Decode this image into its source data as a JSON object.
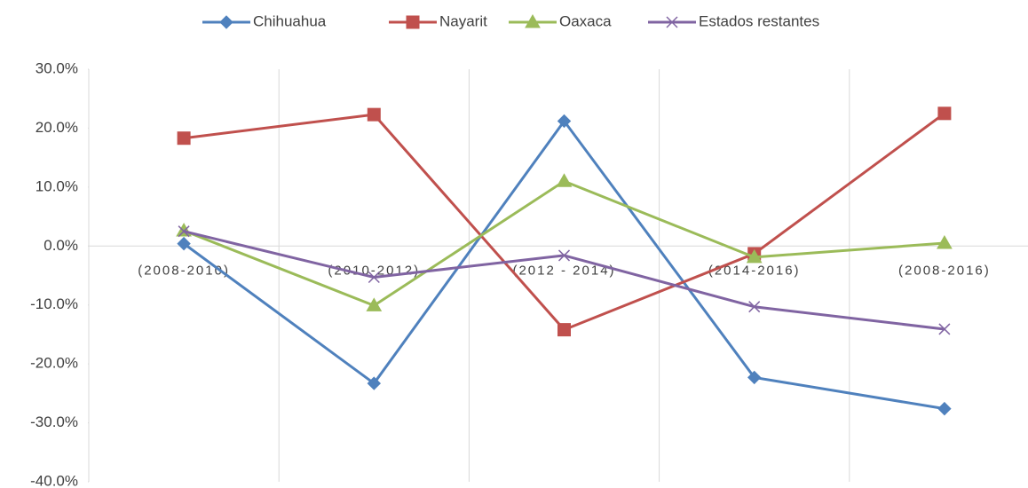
{
  "chart_data": {
    "type": "line",
    "categories": [
      "(2008-2010)",
      "(2010-2012)",
      "(2012 - 2014)",
      "(2014-2016)",
      "(2008-2016)"
    ],
    "series": [
      {
        "name": "Chihuahua",
        "color": "#4f81bd",
        "marker": "diamond",
        "values": [
          0.4,
          -23.3,
          21.2,
          -22.3,
          -27.6
        ]
      },
      {
        "name": "Nayarit",
        "color": "#c0504d",
        "marker": "square",
        "values": [
          18.3,
          22.3,
          -14.2,
          -1.3,
          22.5
        ]
      },
      {
        "name": "Oaxaca",
        "color": "#9bbb59",
        "marker": "triangle",
        "values": [
          2.6,
          -10.1,
          11.0,
          -1.9,
          0.5
        ]
      },
      {
        "name": "Estados restantes",
        "color": "#8064a2",
        "marker": "x",
        "values": [
          2.5,
          -5.3,
          -1.6,
          -10.3,
          -14.1
        ]
      }
    ],
    "ylim": [
      -40,
      30
    ],
    "yticks": [
      {
        "value": -40,
        "label": "-40.0%"
      },
      {
        "value": -30,
        "label": "-30.0%"
      },
      {
        "value": -20,
        "label": "-20.0%"
      },
      {
        "value": -10,
        "label": "-10.0%"
      },
      {
        "value": 0,
        "label": "0.0%"
      },
      {
        "value": 10,
        "label": "10.0%"
      },
      {
        "value": 20,
        "label": "20.0%"
      },
      {
        "value": 30,
        "label": "30.0%"
      }
    ],
    "legend": "top"
  }
}
